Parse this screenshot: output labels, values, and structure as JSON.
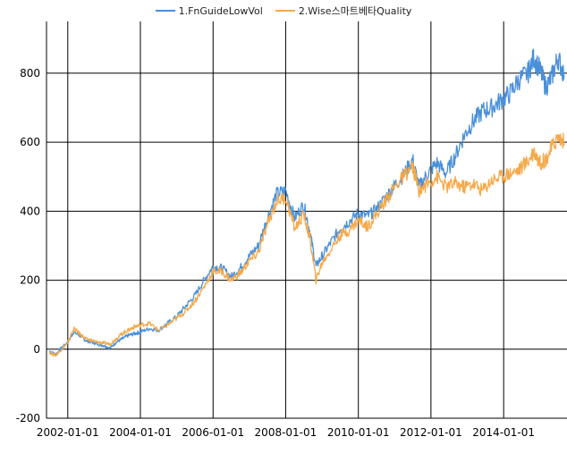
{
  "chart_data": {
    "type": "line",
    "title": "",
    "xlabel": "",
    "ylabel": "",
    "ylim": [
      -200,
      950
    ],
    "xlim": [
      "2001-06-01",
      "2015-09-30"
    ],
    "grid": true,
    "legend_position": "top-center",
    "y_ticks": [
      -200,
      0,
      200,
      400,
      600,
      800
    ],
    "x_ticks": [
      "2002-01-01",
      "2004-01-01",
      "2006-01-01",
      "2008-01-01",
      "2010-01-01",
      "2012-01-01",
      "2014-01-01"
    ],
    "series": [
      {
        "name": "1.FnGuideLowVol",
        "color": "#4a90d9",
        "points": [
          [
            "2001-07-01",
            -5
          ],
          [
            "2001-09-01",
            -15
          ],
          [
            "2001-11-01",
            5
          ],
          [
            "2002-01-01",
            20
          ],
          [
            "2002-03-01",
            50
          ],
          [
            "2002-05-01",
            40
          ],
          [
            "2002-07-01",
            25
          ],
          [
            "2002-09-01",
            20
          ],
          [
            "2002-11-01",
            15
          ],
          [
            "2003-01-01",
            10
          ],
          [
            "2003-03-01",
            3
          ],
          [
            "2003-05-01",
            20
          ],
          [
            "2003-07-01",
            30
          ],
          [
            "2003-09-01",
            40
          ],
          [
            "2003-11-01",
            45
          ],
          [
            "2004-01-01",
            50
          ],
          [
            "2004-04-01",
            60
          ],
          [
            "2004-07-01",
            55
          ],
          [
            "2004-10-01",
            75
          ],
          [
            "2005-01-01",
            95
          ],
          [
            "2005-04-01",
            125
          ],
          [
            "2005-07-01",
            155
          ],
          [
            "2005-10-01",
            200
          ],
          [
            "2006-01-01",
            240
          ],
          [
            "2006-04-01",
            235
          ],
          [
            "2006-07-01",
            210
          ],
          [
            "2006-10-01",
            235
          ],
          [
            "2007-01-01",
            270
          ],
          [
            "2007-04-01",
            300
          ],
          [
            "2007-07-01",
            380
          ],
          [
            "2007-10-01",
            450
          ],
          [
            "2008-01-01",
            460
          ],
          [
            "2008-04-01",
            380
          ],
          [
            "2008-07-01",
            420
          ],
          [
            "2008-09-01",
            340
          ],
          [
            "2008-11-01",
            240
          ],
          [
            "2009-01-01",
            270
          ],
          [
            "2009-04-01",
            310
          ],
          [
            "2009-07-01",
            350
          ],
          [
            "2009-10-01",
            370
          ],
          [
            "2010-01-01",
            395
          ],
          [
            "2010-04-01",
            385
          ],
          [
            "2010-07-01",
            405
          ],
          [
            "2010-10-01",
            440
          ],
          [
            "2011-01-01",
            475
          ],
          [
            "2011-04-01",
            505
          ],
          [
            "2011-07-01",
            550
          ],
          [
            "2011-09-01",
            470
          ],
          [
            "2011-12-01",
            510
          ],
          [
            "2012-03-01",
            540
          ],
          [
            "2012-06-01",
            510
          ],
          [
            "2012-09-01",
            560
          ],
          [
            "2012-12-01",
            620
          ],
          [
            "2013-03-01",
            660
          ],
          [
            "2013-06-01",
            690
          ],
          [
            "2013-09-01",
            700
          ],
          [
            "2013-12-01",
            720
          ],
          [
            "2014-03-01",
            740
          ],
          [
            "2014-06-01",
            780
          ],
          [
            "2014-09-01",
            800
          ],
          [
            "2014-11-01",
            845
          ],
          [
            "2015-01-01",
            810
          ],
          [
            "2015-03-01",
            760
          ],
          [
            "2015-05-01",
            790
          ],
          [
            "2015-07-01",
            845
          ],
          [
            "2015-09-01",
            795
          ]
        ]
      },
      {
        "name": "2.Wise스마트베타Quality",
        "color": "#f5a94a",
        "points": [
          [
            "2001-07-01",
            -10
          ],
          [
            "2001-09-01",
            -18
          ],
          [
            "2001-11-01",
            0
          ],
          [
            "2002-01-01",
            20
          ],
          [
            "2002-03-01",
            60
          ],
          [
            "2002-05-01",
            45
          ],
          [
            "2002-07-01",
            30
          ],
          [
            "2002-09-01",
            25
          ],
          [
            "2002-11-01",
            20
          ],
          [
            "2003-01-01",
            18
          ],
          [
            "2003-03-01",
            15
          ],
          [
            "2003-05-01",
            30
          ],
          [
            "2003-07-01",
            45
          ],
          [
            "2003-09-01",
            55
          ],
          [
            "2003-11-01",
            65
          ],
          [
            "2004-01-01",
            70
          ],
          [
            "2004-04-01",
            75
          ],
          [
            "2004-07-01",
            55
          ],
          [
            "2004-10-01",
            70
          ],
          [
            "2005-01-01",
            90
          ],
          [
            "2005-04-01",
            110
          ],
          [
            "2005-07-01",
            140
          ],
          [
            "2005-10-01",
            180
          ],
          [
            "2006-01-01",
            225
          ],
          [
            "2006-04-01",
            225
          ],
          [
            "2006-07-01",
            200
          ],
          [
            "2006-10-01",
            220
          ],
          [
            "2007-01-01",
            255
          ],
          [
            "2007-04-01",
            280
          ],
          [
            "2007-07-01",
            360
          ],
          [
            "2007-10-01",
            430
          ],
          [
            "2008-01-01",
            440
          ],
          [
            "2008-04-01",
            350
          ],
          [
            "2008-07-01",
            390
          ],
          [
            "2008-09-01",
            320
          ],
          [
            "2008-11-01",
            200
          ],
          [
            "2009-01-01",
            250
          ],
          [
            "2009-04-01",
            290
          ],
          [
            "2009-07-01",
            330
          ],
          [
            "2009-10-01",
            345
          ],
          [
            "2010-01-01",
            375
          ],
          [
            "2010-04-01",
            355
          ],
          [
            "2010-07-01",
            390
          ],
          [
            "2010-10-01",
            430
          ],
          [
            "2011-01-01",
            470
          ],
          [
            "2011-04-01",
            500
          ],
          [
            "2011-07-01",
            530
          ],
          [
            "2011-09-01",
            460
          ],
          [
            "2011-12-01",
            480
          ],
          [
            "2012-03-01",
            500
          ],
          [
            "2012-06-01",
            470
          ],
          [
            "2012-09-01",
            480
          ],
          [
            "2012-12-01",
            470
          ],
          [
            "2013-03-01",
            480
          ],
          [
            "2013-06-01",
            460
          ],
          [
            "2013-09-01",
            490
          ],
          [
            "2013-12-01",
            500
          ],
          [
            "2014-03-01",
            510
          ],
          [
            "2014-06-01",
            520
          ],
          [
            "2014-09-01",
            545
          ],
          [
            "2014-11-01",
            575
          ],
          [
            "2015-01-01",
            540
          ],
          [
            "2015-03-01",
            550
          ],
          [
            "2015-05-01",
            585
          ],
          [
            "2015-07-01",
            615
          ],
          [
            "2015-09-01",
            600
          ]
        ]
      }
    ]
  }
}
